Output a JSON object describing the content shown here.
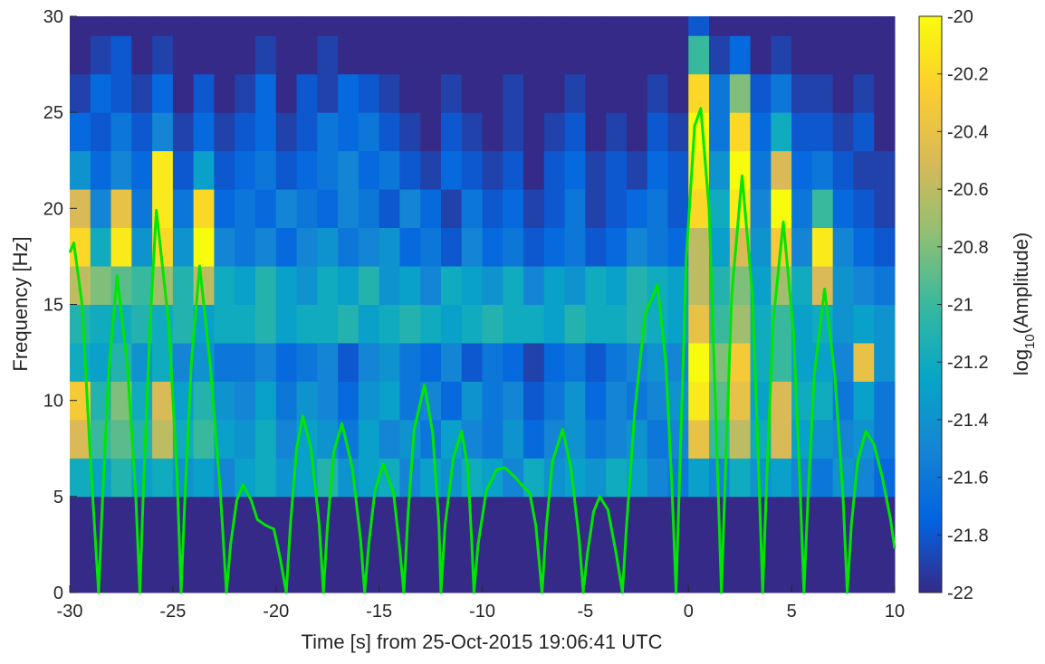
{
  "chart_data": {
    "type": "heatmap",
    "x_label": "Time [s] from 25-Oct-2015 19:06:41 UTC",
    "y_label": "Frequency [Hz]",
    "xlim": [
      -30,
      10
    ],
    "xticks": [
      -30,
      -25,
      -20,
      -15,
      -10,
      -5,
      0,
      5,
      10
    ],
    "ylim": [
      0,
      30
    ],
    "yticks": [
      0,
      5,
      10,
      15,
      20,
      25,
      30
    ],
    "x_edges": [
      -30,
      -29,
      -28,
      -27,
      -26,
      -25,
      -24,
      -23,
      -22,
      -21,
      -20,
      -19,
      -18,
      -17,
      -16,
      -15,
      -14,
      -13,
      -12,
      -11,
      -10,
      -9,
      -8,
      -7,
      -6,
      -5,
      -4,
      -3,
      -2,
      -1,
      0,
      1,
      2,
      3,
      4,
      5,
      6,
      7,
      8,
      9,
      10
    ],
    "y_edges": [
      0,
      5,
      7,
      9,
      11,
      13,
      15,
      17,
      19,
      21,
      23,
      25,
      27,
      29,
      30
    ],
    "z": [
      [
        -22,
        -22,
        -22,
        -22,
        -22,
        -22,
        -22,
        -22,
        -22,
        -22,
        -22,
        -22,
        -22,
        -22,
        -22,
        -22,
        -22,
        -22,
        -22,
        -22,
        -22,
        -22,
        -22,
        -22,
        -22,
        -22,
        -22,
        -22,
        -22,
        -22,
        -22,
        -22,
        -22,
        -22,
        -22,
        -22,
        -22,
        -22,
        -22,
        -22
      ],
      [
        -21.2,
        -21.3,
        -21.1,
        -21.3,
        -21.2,
        -21.4,
        -21.3,
        -21.5,
        -21.3,
        -21.2,
        -21.4,
        -21.3,
        -21.1,
        -21.4,
        -21.3,
        -21.2,
        -21.5,
        -21.3,
        -21.4,
        -21.2,
        -21.3,
        -21.5,
        -21.2,
        -21.4,
        -21.3,
        -21.4,
        -21.2,
        -21.3,
        -21.5,
        -21.6,
        -21.3,
        -21.5,
        -21.2,
        -21.4,
        -21.3,
        -21.5,
        -21.6,
        -21.4,
        -21.5,
        -21.7
      ],
      [
        -20.5,
        -21.0,
        -20.9,
        -21.1,
        -20.6,
        -21.2,
        -21.0,
        -21.3,
        -21.4,
        -21.2,
        -21.5,
        -21.3,
        -21.4,
        -21.6,
        -21.3,
        -21.5,
        -21.4,
        -21.6,
        -21.3,
        -21.5,
        -21.6,
        -21.4,
        -21.7,
        -21.5,
        -21.4,
        -21.6,
        -21.5,
        -21.4,
        -21.6,
        -21.5,
        -20.4,
        -21.0,
        -20.6,
        -21.2,
        -20.5,
        -21.3,
        -21.4,
        -21.5,
        -21.4,
        -21.6
      ],
      [
        -20.3,
        -21.1,
        -20.8,
        -21.2,
        -20.5,
        -21.3,
        -21.1,
        -21.4,
        -21.5,
        -21.3,
        -21.6,
        -21.4,
        -21.5,
        -21.7,
        -21.4,
        -21.3,
        -21.6,
        -21.5,
        -21.7,
        -21.4,
        -21.6,
        -21.5,
        -21.8,
        -21.6,
        -21.4,
        -21.7,
        -21.5,
        -21.6,
        -21.5,
        -21.4,
        -20.1,
        -20.9,
        -20.4,
        -21.3,
        -20.5,
        -21.2,
        -21.2,
        -21.6,
        -21.3,
        -21.6
      ],
      [
        -21.2,
        -21.3,
        -21.1,
        -21.4,
        -21.2,
        -21.5,
        -21.4,
        -21.6,
        -21.6,
        -21.5,
        -21.7,
        -21.6,
        -21.5,
        -21.8,
        -21.5,
        -21.4,
        -21.6,
        -21.7,
        -21.5,
        -21.8,
        -21.6,
        -21.7,
        -21.9,
        -21.7,
        -21.6,
        -21.8,
        -21.6,
        -21.5,
        -21.4,
        -21.5,
        -20.0,
        -20.8,
        -20.3,
        -21.2,
        -21.0,
        -21.3,
        -21.3,
        -21.5,
        -20.4,
        -21.4
      ],
      [
        -21.1,
        -21.2,
        -21.2,
        -21.1,
        -21.2,
        -21.1,
        -21.3,
        -21.2,
        -21.2,
        -21.1,
        -21.3,
        -21.2,
        -21.2,
        -21.1,
        -21.3,
        -21.2,
        -21.1,
        -21.2,
        -21.3,
        -21.2,
        -21.1,
        -21.2,
        -21.2,
        -21.3,
        -21.1,
        -21.2,
        -21.2,
        -21.1,
        -21.2,
        -21.3,
        -20.4,
        -21.0,
        -20.7,
        -21.2,
        -21.0,
        -21.3,
        -21.2,
        -21.4,
        -21.3,
        -21.4
      ],
      [
        -20.6,
        -20.8,
        -20.9,
        -21.0,
        -20.7,
        -21.1,
        -20.6,
        -21.2,
        -21.3,
        -21.1,
        -21.3,
        -21.4,
        -21.2,
        -21.3,
        -21.1,
        -21.4,
        -21.3,
        -21.5,
        -21.2,
        -21.3,
        -21.4,
        -21.2,
        -21.5,
        -21.3,
        -21.4,
        -21.2,
        -21.3,
        -21.1,
        -21.2,
        -21.3,
        -20.6,
        -21.1,
        -20.8,
        -21.3,
        -20.7,
        -21.2,
        -20.5,
        -21.4,
        -21.5,
        -21.6
      ],
      [
        -20.2,
        -21.2,
        -20.1,
        -21.4,
        -20.2,
        -21.4,
        -20.0,
        -21.5,
        -21.6,
        -21.5,
        -21.7,
        -21.5,
        -21.4,
        -21.6,
        -21.5,
        -21.4,
        -21.7,
        -21.6,
        -21.8,
        -21.5,
        -21.7,
        -21.6,
        -21.8,
        -21.7,
        -21.6,
        -21.8,
        -21.7,
        -21.5,
        -21.6,
        -21.7,
        -20.6,
        -21.3,
        -20.5,
        -21.4,
        -20.3,
        -21.5,
        -20.1,
        -21.5,
        -21.7,
        -21.8
      ],
      [
        -20.5,
        -21.5,
        -20.4,
        -21.6,
        -20.1,
        -21.6,
        -20.2,
        -21.7,
        -21.6,
        -21.7,
        -21.5,
        -21.6,
        -21.7,
        -21.5,
        -21.6,
        -21.8,
        -21.5,
        -21.7,
        -21.9,
        -21.6,
        -21.8,
        -21.7,
        -21.9,
        -21.8,
        -21.6,
        -21.9,
        -21.8,
        -21.7,
        -21.6,
        -21.8,
        -20.2,
        -21.2,
        -20.1,
        -21.5,
        -20.0,
        -21.6,
        -21.0,
        -21.7,
        -21.8,
        -21.9
      ],
      [
        -21.4,
        -21.7,
        -21.5,
        -21.7,
        -20.1,
        -21.8,
        -21.3,
        -21.8,
        -21.7,
        -21.6,
        -21.8,
        -21.7,
        -21.6,
        -21.5,
        -21.7,
        -21.6,
        -21.8,
        -21.9,
        -21.7,
        -21.8,
        -21.9,
        -21.8,
        -22.0,
        -21.8,
        -21.7,
        -21.9,
        -21.8,
        -21.9,
        -21.7,
        -21.8,
        -20.1,
        -21.4,
        -20.0,
        -21.6,
        -20.5,
        -21.7,
        -21.6,
        -21.8,
        -21.9,
        -21.9
      ],
      [
        -21.7,
        -21.8,
        -21.6,
        -21.8,
        -21.5,
        -21.9,
        -21.7,
        -21.9,
        -21.8,
        -21.7,
        -21.9,
        -21.8,
        -21.6,
        -21.7,
        -21.6,
        -21.8,
        -21.9,
        -22.0,
        -21.8,
        -21.9,
        -22.0,
        -21.9,
        -22.0,
        -21.9,
        -21.8,
        -22.0,
        -21.9,
        -22.0,
        -21.8,
        -21.9,
        -20.0,
        -21.6,
        -20.2,
        -21.7,
        -21.2,
        -21.8,
        -21.8,
        -21.9,
        -21.8,
        -22.0
      ],
      [
        -21.9,
        -21.7,
        -21.8,
        -21.9,
        -21.7,
        -22.0,
        -21.8,
        -22.0,
        -21.9,
        -21.7,
        -22.0,
        -21.8,
        -21.9,
        -21.7,
        -21.8,
        -21.9,
        -22.0,
        -22.0,
        -21.9,
        -22.0,
        -22.0,
        -21.9,
        -22.0,
        -22.0,
        -21.9,
        -22.0,
        -22.0,
        -22.0,
        -21.9,
        -22.0,
        -20.2,
        -21.6,
        -20.8,
        -21.8,
        -21.6,
        -21.9,
        -21.9,
        -22.0,
        -21.9,
        -22.0
      ],
      [
        -22.0,
        -21.9,
        -21.8,
        -22.0,
        -21.9,
        -22.0,
        -22.0,
        -22.0,
        -22.0,
        -21.9,
        -22.0,
        -22.0,
        -21.9,
        -22.0,
        -22.0,
        -22.0,
        -22.0,
        -22.0,
        -22.0,
        -22.0,
        -22.0,
        -22.0,
        -22.0,
        -22.0,
        -22.0,
        -22.0,
        -22.0,
        -22.0,
        -22.0,
        -22.0,
        -21.0,
        -21.9,
        -21.7,
        -22.0,
        -21.9,
        -22.0,
        -22.0,
        -22.0,
        -22.0,
        -22.0
      ],
      [
        -22,
        -22,
        -22,
        -22,
        -22,
        -22,
        -22,
        -22,
        -22,
        -22,
        -22,
        -22,
        -22,
        -22,
        -22,
        -22,
        -22,
        -22,
        -22,
        -22,
        -22,
        -22,
        -22,
        -22,
        -22,
        -22,
        -22,
        -22,
        -22,
        -22,
        -21.8,
        -22,
        -22,
        -22,
        -22,
        -22,
        -22,
        -22,
        -22,
        -22
      ]
    ],
    "zlim": [
      -22,
      -20
    ],
    "zticks": [
      -22,
      -21.8,
      -21.6,
      -21.4,
      -21.2,
      -21,
      -20.8,
      -20.6,
      -20.4,
      -20.2,
      -20
    ],
    "colorbar_label": {
      "base": "log",
      "sub": "10",
      "rest": "(Amplitude)"
    },
    "line": {
      "color": "#00e600",
      "x": [
        -30,
        -29.8,
        -29.4,
        -29.0,
        -28.6,
        -28.4,
        -28.1,
        -27.7,
        -27.2,
        -26.8,
        -26.6,
        -26.4,
        -26.1,
        -25.8,
        -25.2,
        -24.8,
        -24.6,
        -24.4,
        -24.1,
        -23.7,
        -23.2,
        -22.7,
        -22.4,
        -22.2,
        -21.9,
        -21.6,
        -21.2,
        -20.9,
        -20.5,
        -20.1,
        -19.8,
        -19.5,
        -19.3,
        -19.0,
        -18.7,
        -18.3,
        -17.9,
        -17.7,
        -17.5,
        -17.2,
        -16.8,
        -16.3,
        -15.9,
        -15.7,
        -15.5,
        -15.2,
        -14.8,
        -14.3,
        -14.0,
        -13.8,
        -13.6,
        -13.3,
        -12.8,
        -12.4,
        -12.1,
        -12.0,
        -11.8,
        -11.4,
        -11.0,
        -10.7,
        -10.5,
        -10.4,
        -10.2,
        -9.8,
        -9.3,
        -8.9,
        -8.4,
        -8.0,
        -7.7,
        -7.4,
        -7.1,
        -6.9,
        -6.6,
        -6.1,
        -5.7,
        -5.3,
        -5.1,
        -4.9,
        -4.6,
        -4.3,
        -3.9,
        -3.5,
        -3.2,
        -3.0,
        -2.6,
        -2.1,
        -1.5,
        -1.1,
        -0.8,
        -0.6,
        -0.4,
        -0.1,
        0.3,
        0.6,
        1.0,
        1.3,
        1.6,
        1.8,
        2.1,
        2.6,
        3.1,
        3.4,
        3.6,
        3.8,
        4.1,
        4.6,
        5.1,
        5.4,
        5.6,
        5.8,
        6.1,
        6.6,
        7.1,
        7.5,
        7.7,
        7.9,
        8.2,
        8.6,
        9.0,
        9.4,
        9.8,
        10
      ],
      "values": [
        17.7,
        18.2,
        15,
        7,
        0,
        5.1,
        11.7,
        16.5,
        11.7,
        5.1,
        0,
        6.2,
        14,
        19.9,
        14,
        6.2,
        0,
        5.3,
        12,
        17,
        12,
        5.3,
        0,
        2.5,
        4.8,
        5.6,
        4.8,
        3.8,
        3.5,
        3.3,
        1.8,
        0,
        3.5,
        7.5,
        9.2,
        7.5,
        3.5,
        0,
        3.5,
        7.3,
        8.8,
        6.5,
        2.8,
        0,
        2.5,
        5.3,
        6.7,
        5.2,
        2.3,
        0,
        4,
        8.5,
        10.8,
        8.3,
        3.6,
        0,
        3.5,
        7,
        8.4,
        6.5,
        2.5,
        0,
        2.5,
        5.3,
        6.4,
        6.5,
        6.0,
        5.5,
        5.2,
        3.5,
        0,
        3.3,
        6.8,
        8.5,
        6.5,
        2.8,
        0,
        2,
        4.2,
        5,
        4.3,
        2,
        0,
        3.5,
        9.5,
        14.5,
        16,
        12,
        5.5,
        0,
        7,
        17.5,
        24.3,
        25.2,
        20,
        10,
        0,
        6.5,
        15.5,
        21.7,
        15.5,
        6.5,
        0,
        6,
        14,
        19.3,
        13.5,
        5.8,
        0,
        5,
        11.3,
        15.8,
        11.3,
        4.9,
        0,
        3.5,
        6.8,
        8.4,
        7.7,
        6,
        3.8,
        2.3
      ]
    }
  }
}
